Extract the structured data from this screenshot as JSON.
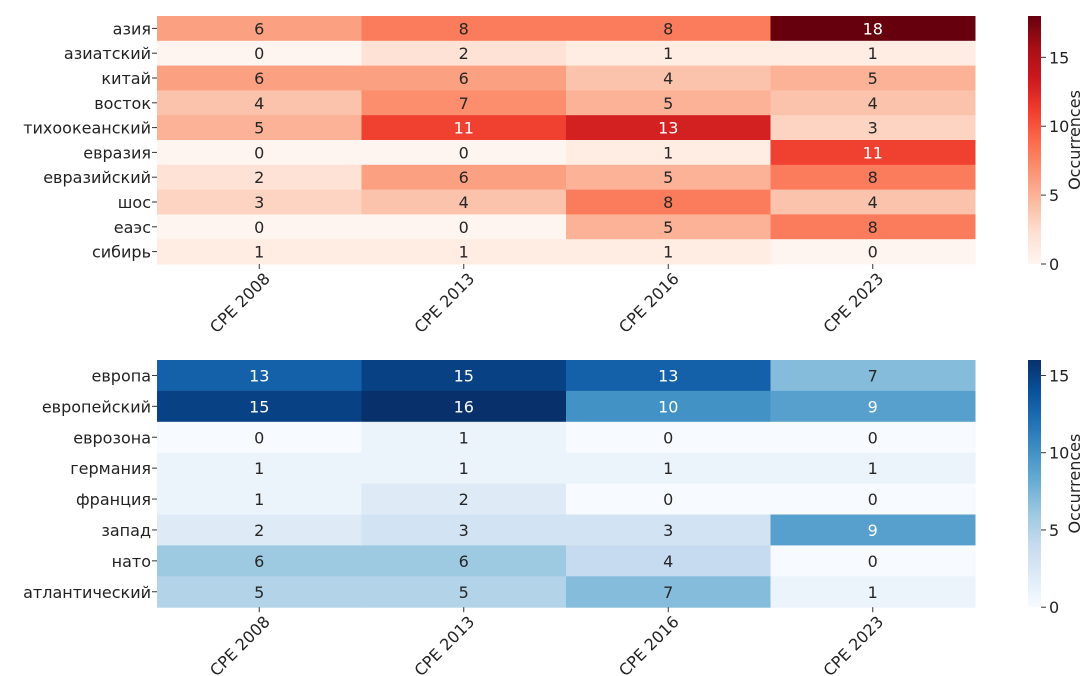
{
  "chart_data": [
    {
      "type": "heatmap",
      "colormap": "Reds",
      "vmin": 0,
      "vmax": 18,
      "columns": [
        "CPE 2008",
        "CPE 2013",
        "CPE 2016",
        "CPE 2023"
      ],
      "rows": [
        "азия",
        "азиатский",
        "китай",
        "восток",
        "тихоокеанский",
        "евразия",
        "евразийский",
        "шос",
        "еаэс",
        "сибирь"
      ],
      "values": [
        [
          6,
          8,
          8,
          18
        ],
        [
          0,
          2,
          1,
          1
        ],
        [
          6,
          6,
          4,
          5
        ],
        [
          4,
          7,
          5,
          4
        ],
        [
          5,
          11,
          13,
          3
        ],
        [
          0,
          0,
          1,
          11
        ],
        [
          2,
          6,
          5,
          8
        ],
        [
          3,
          4,
          8,
          4
        ],
        [
          0,
          0,
          5,
          8
        ],
        [
          1,
          1,
          1,
          0
        ]
      ],
      "colorbar": {
        "label": "Occurrences",
        "ticks": [
          0,
          5,
          10,
          15
        ]
      }
    },
    {
      "type": "heatmap",
      "colormap": "Blues",
      "vmin": 0,
      "vmax": 16,
      "columns": [
        "CPE 2008",
        "CPE 2013",
        "CPE 2016",
        "CPE 2023"
      ],
      "rows": [
        "европа",
        "европейский",
        "еврозона",
        "германия",
        "франция",
        "запад",
        "нато",
        "атлантический"
      ],
      "values": [
        [
          13,
          15,
          13,
          7
        ],
        [
          15,
          16,
          10,
          9
        ],
        [
          0,
          1,
          0,
          0
        ],
        [
          1,
          1,
          1,
          1
        ],
        [
          1,
          2,
          0,
          0
        ],
        [
          2,
          3,
          3,
          9
        ],
        [
          6,
          6,
          4,
          0
        ],
        [
          5,
          5,
          7,
          1
        ]
      ],
      "colorbar": {
        "label": "Occurrences",
        "ticks": [
          0,
          5,
          10,
          15
        ]
      }
    }
  ]
}
